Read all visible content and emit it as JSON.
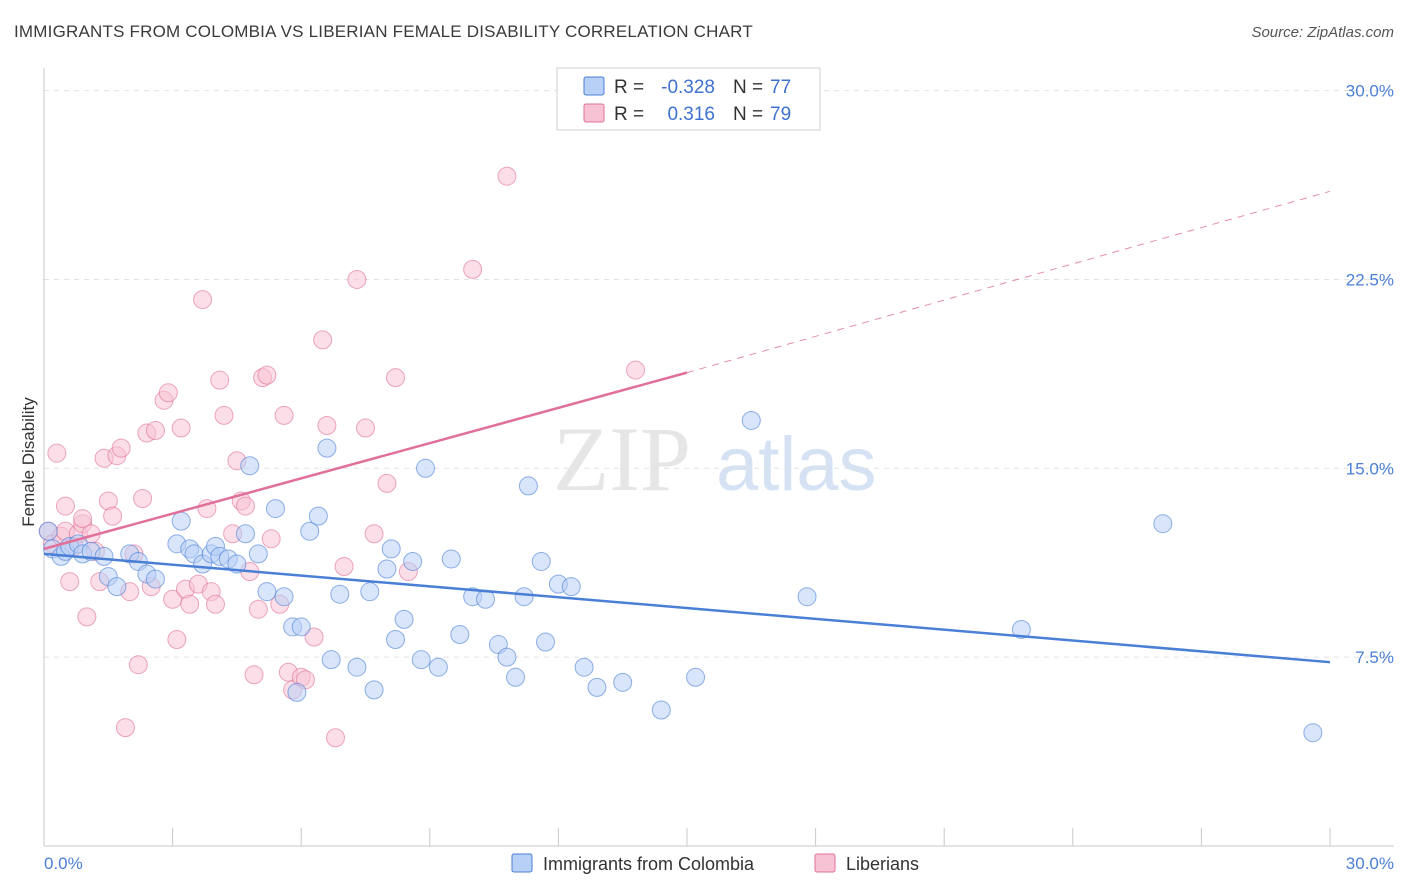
{
  "title": "IMMIGRANTS FROM COLOMBIA VS LIBERIAN FEMALE DISABILITY CORRELATION CHART",
  "source": "Source: ZipAtlas.com",
  "watermark": {
    "zip": "ZIP",
    "atlas": "atlas"
  },
  "legend": {
    "r_label": "R =",
    "n_label": "N =",
    "series": [
      {
        "name": "Immigrants from Colombia",
        "r": "-0.328",
        "n": "77",
        "color": "#4a7fd6",
        "fill": "#b8d0f5"
      },
      {
        "name": "Liberians",
        "r": "0.316",
        "n": "79",
        "color": "#e0709a",
        "fill": "#f7c3d4"
      }
    ]
  },
  "chart_data": {
    "type": "scatter",
    "title": "IMMIGRANTS FROM COLOMBIA VS LIBERIAN FEMALE DISABILITY CORRELATION CHART",
    "xlabel": "",
    "ylabel": "Female Disability",
    "xlim": [
      0,
      30
    ],
    "ylim": [
      0,
      30.5
    ],
    "x_tick_labels": [
      "0.0%",
      "30.0%"
    ],
    "y_ticks": [
      7.5,
      15.0,
      22.5,
      30.0
    ],
    "y_tick_labels": [
      "7.5%",
      "15.0%",
      "22.5%",
      "30.0%"
    ],
    "grid": "horizontal dashed",
    "legend_position": "top-center",
    "series": [
      {
        "name": "Immigrants from Colombia",
        "color": "#4a7fd6",
        "trend": {
          "x": [
            0,
            30
          ],
          "y": [
            11.6,
            7.3
          ],
          "style": "solid"
        },
        "points": [
          [
            0.1,
            12.5
          ],
          [
            0.2,
            11.8
          ],
          [
            0.4,
            11.5
          ],
          [
            0.5,
            11.7
          ],
          [
            0.6,
            11.9
          ],
          [
            0.8,
            12.0
          ],
          [
            0.9,
            11.6
          ],
          [
            1.1,
            11.7
          ],
          [
            1.4,
            11.5
          ],
          [
            1.5,
            10.7
          ],
          [
            1.7,
            10.3
          ],
          [
            2.0,
            11.6
          ],
          [
            2.2,
            11.3
          ],
          [
            2.4,
            10.8
          ],
          [
            2.6,
            10.6
          ],
          [
            3.1,
            12.0
          ],
          [
            3.2,
            12.9
          ],
          [
            3.4,
            11.8
          ],
          [
            3.5,
            11.6
          ],
          [
            3.7,
            11.2
          ],
          [
            3.9,
            11.6
          ],
          [
            4.0,
            11.9
          ],
          [
            4.1,
            11.5
          ],
          [
            4.3,
            11.4
          ],
          [
            4.5,
            11.2
          ],
          [
            4.7,
            12.4
          ],
          [
            4.8,
            15.1
          ],
          [
            5.0,
            11.6
          ],
          [
            5.2,
            10.1
          ],
          [
            5.4,
            13.4
          ],
          [
            5.6,
            9.9
          ],
          [
            5.8,
            8.7
          ],
          [
            5.9,
            6.1
          ],
          [
            6.0,
            8.7
          ],
          [
            6.2,
            12.5
          ],
          [
            6.4,
            13.1
          ],
          [
            6.6,
            15.8
          ],
          [
            6.7,
            7.4
          ],
          [
            6.9,
            10.0
          ],
          [
            7.3,
            7.1
          ],
          [
            7.6,
            10.1
          ],
          [
            7.7,
            6.2
          ],
          [
            8.0,
            11.0
          ],
          [
            8.1,
            11.8
          ],
          [
            8.2,
            8.2
          ],
          [
            8.4,
            9.0
          ],
          [
            8.6,
            11.3
          ],
          [
            8.8,
            7.4
          ],
          [
            8.9,
            15.0
          ],
          [
            9.2,
            7.1
          ],
          [
            9.5,
            11.4
          ],
          [
            9.7,
            8.4
          ],
          [
            10.0,
            9.9
          ],
          [
            10.3,
            9.8
          ],
          [
            10.6,
            8.0
          ],
          [
            10.8,
            7.5
          ],
          [
            11.0,
            6.7
          ],
          [
            11.2,
            9.9
          ],
          [
            11.3,
            14.3
          ],
          [
            11.6,
            11.3
          ],
          [
            11.7,
            8.1
          ],
          [
            12.0,
            10.4
          ],
          [
            12.3,
            10.3
          ],
          [
            12.6,
            7.1
          ],
          [
            12.9,
            6.3
          ],
          [
            13.5,
            6.5
          ],
          [
            14.4,
            5.4
          ],
          [
            15.2,
            6.7
          ],
          [
            16.5,
            16.9
          ],
          [
            17.8,
            9.9
          ],
          [
            22.8,
            8.6
          ],
          [
            26.1,
            12.8
          ],
          [
            29.6,
            4.5
          ]
        ]
      },
      {
        "name": "Liberians",
        "color": "#e0709a",
        "trend": {
          "x": [
            0,
            15
          ],
          "y": [
            11.8,
            18.8
          ],
          "style": "solid",
          "extended_to": {
            "x": 30,
            "y": 26.0,
            "style": "dashed"
          }
        },
        "points": [
          [
            0.1,
            12.5
          ],
          [
            0.2,
            12.0
          ],
          [
            0.3,
            15.6
          ],
          [
            0.4,
            12.3
          ],
          [
            0.5,
            12.5
          ],
          [
            0.5,
            13.5
          ],
          [
            0.6,
            10.5
          ],
          [
            0.7,
            11.9
          ],
          [
            0.8,
            12.4
          ],
          [
            0.9,
            12.8
          ],
          [
            0.9,
            13.0
          ],
          [
            1.0,
            9.1
          ],
          [
            1.1,
            12.4
          ],
          [
            1.2,
            11.7
          ],
          [
            1.3,
            10.5
          ],
          [
            1.4,
            15.4
          ],
          [
            1.5,
            13.7
          ],
          [
            1.6,
            13.1
          ],
          [
            1.7,
            15.5
          ],
          [
            1.8,
            15.8
          ],
          [
            1.9,
            4.7
          ],
          [
            2.0,
            10.1
          ],
          [
            2.1,
            11.6
          ],
          [
            2.2,
            7.2
          ],
          [
            2.3,
            13.8
          ],
          [
            2.4,
            16.4
          ],
          [
            2.5,
            10.3
          ],
          [
            2.6,
            16.5
          ],
          [
            2.8,
            17.7
          ],
          [
            2.9,
            18.0
          ],
          [
            3.0,
            9.8
          ],
          [
            3.1,
            8.2
          ],
          [
            3.2,
            16.6
          ],
          [
            3.3,
            10.2
          ],
          [
            3.4,
            9.6
          ],
          [
            3.6,
            10.4
          ],
          [
            3.7,
            21.7
          ],
          [
            3.8,
            13.4
          ],
          [
            3.9,
            10.1
          ],
          [
            4.0,
            9.6
          ],
          [
            4.1,
            18.5
          ],
          [
            4.2,
            17.1
          ],
          [
            4.4,
            12.4
          ],
          [
            4.5,
            15.3
          ],
          [
            4.6,
            13.7
          ],
          [
            4.7,
            13.5
          ],
          [
            4.8,
            10.9
          ],
          [
            4.9,
            6.8
          ],
          [
            5.0,
            9.4
          ],
          [
            5.1,
            18.6
          ],
          [
            5.2,
            18.7
          ],
          [
            5.3,
            12.2
          ],
          [
            5.5,
            9.6
          ],
          [
            5.6,
            17.1
          ],
          [
            5.7,
            6.9
          ],
          [
            5.8,
            6.2
          ],
          [
            6.0,
            6.7
          ],
          [
            6.1,
            6.6
          ],
          [
            6.3,
            8.3
          ],
          [
            6.5,
            20.1
          ],
          [
            6.6,
            16.7
          ],
          [
            6.8,
            4.3
          ],
          [
            7.0,
            11.1
          ],
          [
            7.3,
            22.5
          ],
          [
            7.5,
            16.6
          ],
          [
            7.7,
            12.4
          ],
          [
            8.0,
            14.4
          ],
          [
            8.2,
            18.6
          ],
          [
            8.5,
            10.9
          ],
          [
            10.0,
            22.9
          ],
          [
            10.8,
            26.6
          ],
          [
            13.8,
            18.9
          ]
        ]
      }
    ]
  }
}
